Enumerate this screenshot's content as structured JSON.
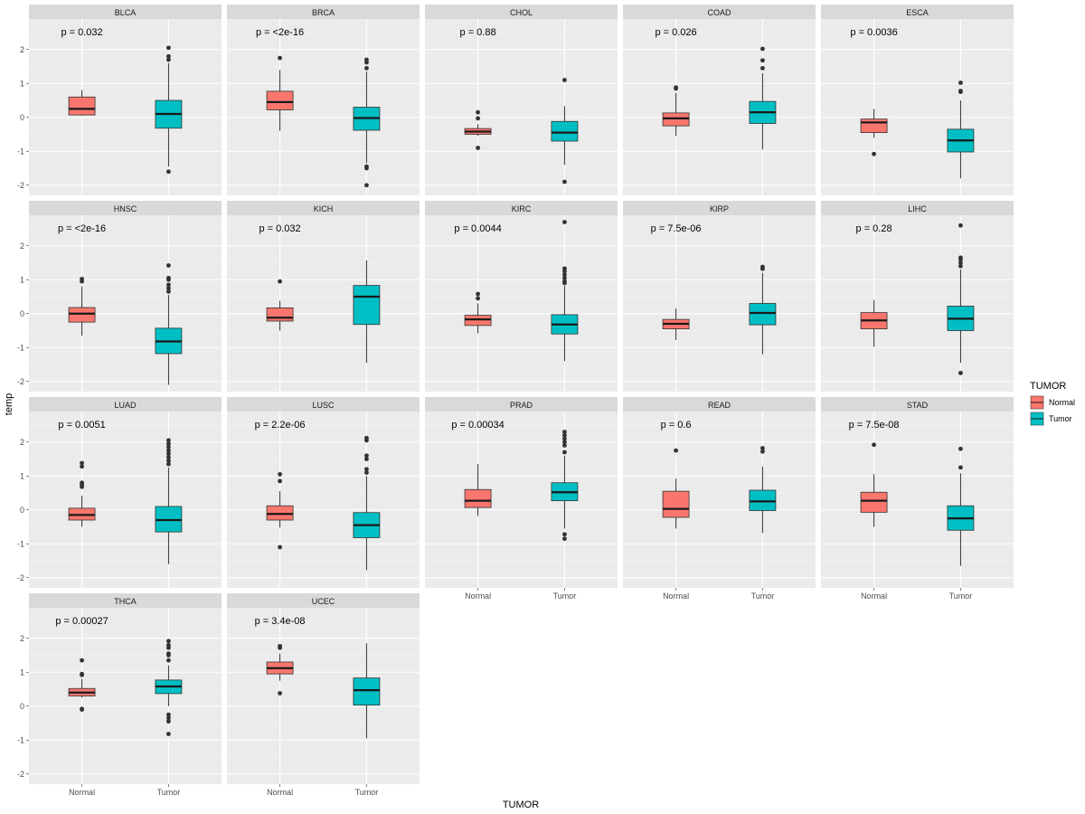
{
  "chart_data": {
    "type": "boxplot",
    "xlabel": "TUMOR",
    "ylabel": "temp",
    "ylim": [
      -2.3,
      2.9
    ],
    "yticks": [
      -2,
      -1,
      0,
      1,
      2
    ],
    "categories": [
      "Normal",
      "Tumor"
    ],
    "legend": {
      "title": "TUMOR",
      "position": "right",
      "entries": [
        {
          "label": "Normal",
          "color": "#F8766D"
        },
        {
          "label": "Tumor",
          "color": "#00BFC4"
        }
      ]
    },
    "panels": [
      {
        "name": "BLCA",
        "p": "p = 0.032",
        "Normal": {
          "min": 0.05,
          "q1": 0.07,
          "median": 0.25,
          "q3": 0.6,
          "max": 0.8,
          "outliers": []
        },
        "Tumor": {
          "min": -1.45,
          "q1": -0.32,
          "median": 0.1,
          "q3": 0.5,
          "max": 1.6,
          "outliers": [
            1.7,
            1.8,
            2.05,
            -1.6
          ]
        }
      },
      {
        "name": "BRCA",
        "p": "p = <2e-16",
        "Normal": {
          "min": -0.4,
          "q1": 0.22,
          "median": 0.45,
          "q3": 0.77,
          "max": 1.4,
          "outliers": [
            1.75
          ]
        },
        "Tumor": {
          "min": -1.35,
          "q1": -0.38,
          "median": -0.02,
          "q3": 0.3,
          "max": 1.35,
          "outliers": [
            1.45,
            1.62,
            1.7,
            -1.45,
            -1.5,
            -2.0
          ]
        }
      },
      {
        "name": "CHOL",
        "p": "p = 0.88",
        "Normal": {
          "min": -0.55,
          "q1": -0.5,
          "median": -0.42,
          "q3": -0.33,
          "max": -0.2,
          "outliers": [
            0.15,
            -0.9,
            -0.03
          ]
        },
        "Tumor": {
          "min": -1.4,
          "q1": -0.7,
          "median": -0.45,
          "q3": -0.12,
          "max": 0.33,
          "outliers": [
            1.1,
            -1.9
          ]
        }
      },
      {
        "name": "COAD",
        "p": "p = 0.026",
        "Normal": {
          "min": -0.55,
          "q1": -0.25,
          "median": -0.03,
          "q3": 0.13,
          "max": 0.72,
          "outliers": [
            0.85,
            0.88
          ]
        },
        "Tumor": {
          "min": -0.95,
          "q1": -0.18,
          "median": 0.15,
          "q3": 0.47,
          "max": 1.3,
          "outliers": [
            1.45,
            1.68,
            2.02
          ]
        }
      },
      {
        "name": "ESCA",
        "p": "p = 0.0036",
        "Normal": {
          "min": -0.6,
          "q1": -0.45,
          "median": -0.15,
          "q3": -0.05,
          "max": 0.25,
          "outliers": [
            -1.08
          ]
        },
        "Tumor": {
          "min": -1.8,
          "q1": -1.02,
          "median": -0.68,
          "q3": -0.35,
          "max": 0.5,
          "outliers": [
            0.75,
            0.78,
            1.02
          ]
        }
      },
      {
        "name": "HNSC",
        "p": "p = <2e-16",
        "Normal": {
          "min": -0.65,
          "q1": -0.25,
          "median": 0.0,
          "q3": 0.18,
          "max": 0.8,
          "outliers": [
            0.95,
            1.02
          ]
        },
        "Tumor": {
          "min": -2.1,
          "q1": -1.18,
          "median": -0.82,
          "q3": -0.43,
          "max": 0.55,
          "outliers": [
            0.65,
            0.75,
            0.85,
            1.0,
            1.05,
            1.42
          ]
        }
      },
      {
        "name": "KICH",
        "p": "p = 0.032",
        "Normal": {
          "min": -0.5,
          "q1": -0.22,
          "median": -0.12,
          "q3": 0.17,
          "max": 0.38,
          "outliers": [
            0.95
          ]
        },
        "Tumor": {
          "min": -1.45,
          "q1": -0.32,
          "median": 0.5,
          "q3": 0.83,
          "max": 1.57,
          "outliers": []
        }
      },
      {
        "name": "KIRC",
        "p": "p = 0.0044",
        "Normal": {
          "min": -0.58,
          "q1": -0.35,
          "median": -0.17,
          "q3": -0.05,
          "max": 0.3,
          "outliers": [
            0.45,
            0.58
          ]
        },
        "Tumor": {
          "min": -1.4,
          "q1": -0.6,
          "median": -0.32,
          "q3": -0.03,
          "max": 0.82,
          "outliers": [
            0.9,
            0.95,
            1.05,
            1.15,
            1.25,
            1.33,
            2.7
          ]
        }
      },
      {
        "name": "KIRP",
        "p": "p = 7.5e-06",
        "Normal": {
          "min": -0.78,
          "q1": -0.45,
          "median": -0.3,
          "q3": -0.17,
          "max": 0.15,
          "outliers": []
        },
        "Tumor": {
          "min": -1.2,
          "q1": -0.33,
          "median": 0.02,
          "q3": 0.3,
          "max": 1.2,
          "outliers": [
            1.32,
            1.38
          ]
        }
      },
      {
        "name": "LIHC",
        "p": "p = 0.28",
        "Normal": {
          "min": -0.98,
          "q1": -0.45,
          "median": -0.2,
          "q3": 0.03,
          "max": 0.4,
          "outliers": []
        },
        "Tumor": {
          "min": -1.45,
          "q1": -0.5,
          "median": -0.15,
          "q3": 0.22,
          "max": 1.3,
          "outliers": [
            1.4,
            1.5,
            1.6,
            1.65,
            2.6,
            -1.75
          ]
        }
      },
      {
        "name": "LUAD",
        "p": "p = 0.0051",
        "Normal": {
          "min": -0.5,
          "q1": -0.3,
          "median": -0.15,
          "q3": 0.05,
          "max": 0.42,
          "outliers": [
            0.68,
            0.75,
            0.8,
            1.28,
            1.38
          ]
        },
        "Tumor": {
          "min": -1.6,
          "q1": -0.65,
          "median": -0.3,
          "q3": 0.1,
          "max": 1.25,
          "outliers": [
            1.35,
            1.45,
            1.55,
            1.65,
            1.75,
            1.85,
            1.95,
            2.05
          ]
        }
      },
      {
        "name": "LUSC",
        "p": "p = 2.2e-06",
        "Normal": {
          "min": -0.52,
          "q1": -0.3,
          "median": -0.12,
          "q3": 0.12,
          "max": 0.55,
          "outliers": [
            0.85,
            1.05,
            -1.1
          ]
        },
        "Tumor": {
          "min": -1.78,
          "q1": -0.82,
          "median": -0.45,
          "q3": -0.08,
          "max": 1.0,
          "outliers": [
            1.1,
            1.2,
            1.5,
            1.6,
            2.05,
            2.12
          ]
        }
      },
      {
        "name": "PRAD",
        "p": "p = 0.00034",
        "Normal": {
          "min": -0.18,
          "q1": 0.07,
          "median": 0.27,
          "q3": 0.6,
          "max": 1.35,
          "outliers": []
        },
        "Tumor": {
          "min": -0.55,
          "q1": 0.27,
          "median": 0.52,
          "q3": 0.8,
          "max": 1.6,
          "outliers": [
            1.7,
            1.9,
            2.0,
            2.1,
            2.2,
            2.3,
            -0.72,
            -0.85
          ]
        }
      },
      {
        "name": "READ",
        "p": "p = 0.6",
        "Normal": {
          "min": -0.55,
          "q1": -0.22,
          "median": 0.03,
          "q3": 0.55,
          "max": 0.92,
          "outliers": [
            1.75
          ]
        },
        "Tumor": {
          "min": -0.68,
          "q1": -0.02,
          "median": 0.25,
          "q3": 0.58,
          "max": 1.28,
          "outliers": [
            1.72,
            1.82
          ]
        }
      },
      {
        "name": "STAD",
        "p": "p = 7.5e-08",
        "Normal": {
          "min": -0.5,
          "q1": -0.07,
          "median": 0.27,
          "q3": 0.52,
          "max": 1.05,
          "outliers": [
            1.92
          ]
        },
        "Tumor": {
          "min": -1.65,
          "q1": -0.6,
          "median": -0.25,
          "q3": 0.12,
          "max": 1.08,
          "outliers": [
            1.25,
            1.8
          ]
        }
      },
      {
        "name": "THCA",
        "p": "p = 0.00027",
        "Normal": {
          "min": 0.25,
          "q1": 0.3,
          "median": 0.4,
          "q3": 0.52,
          "max": 0.8,
          "outliers": [
            0.92,
            0.95,
            1.35,
            -0.08,
            -0.1
          ]
        },
        "Tumor": {
          "min": 0.0,
          "q1": 0.37,
          "median": 0.58,
          "q3": 0.77,
          "max": 1.2,
          "outliers": [
            1.35,
            1.5,
            1.55,
            1.72,
            1.8,
            1.92,
            -0.25,
            -0.35,
            -0.45,
            -0.82
          ]
        }
      },
      {
        "name": "UCEC",
        "p": "p = 3.4e-08",
        "Normal": {
          "min": 0.75,
          "q1": 0.95,
          "median": 1.12,
          "q3": 1.3,
          "max": 1.55,
          "outliers": [
            1.72,
            1.77,
            0.38
          ]
        },
        "Tumor": {
          "min": -0.95,
          "q1": 0.03,
          "median": 0.47,
          "q3": 0.83,
          "max": 1.85,
          "outliers": []
        }
      }
    ]
  }
}
